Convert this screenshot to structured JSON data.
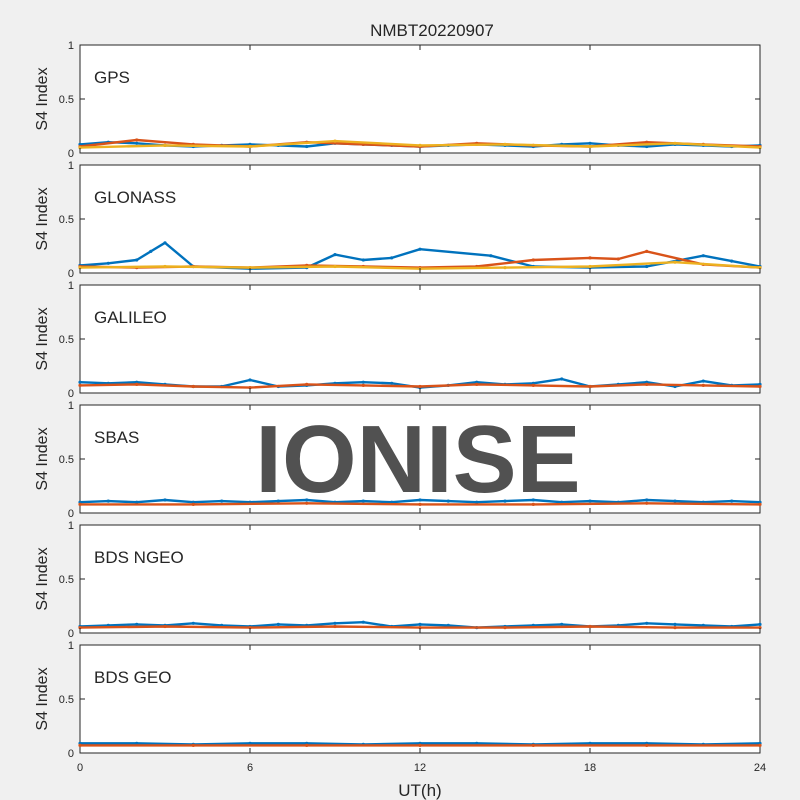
{
  "figure": {
    "title": "NMBT20220907",
    "xlabel": "UT(h)",
    "watermark": "IONISE"
  },
  "palette": [
    "#0072bd",
    "#d95319",
    "#edb120",
    "#7e2f8e",
    "#77ac30",
    "#4dbeee",
    "#a2142f"
  ],
  "chart_data": {
    "type": "scatter",
    "title": "NMBT20220907",
    "xlabel": "UT(h)",
    "xlim": [
      0,
      24
    ],
    "xticks": [
      0,
      6,
      12,
      18,
      24
    ],
    "panels": [
      {
        "label": "GPS",
        "ylabel": "S4 Index",
        "ylim": [
          0,
          1
        ],
        "yticks": [
          0,
          0.5,
          1
        ],
        "series": [
          {
            "x": [
              0,
              1,
              2,
              3,
              4,
              5,
              6,
              7,
              8,
              9,
              10,
              11,
              12,
              13,
              14,
              15,
              16,
              17,
              18,
              19,
              20,
              21,
              22,
              23,
              24
            ],
            "y": [
              0.08,
              0.1,
              0.09,
              0.07,
              0.06,
              0.07,
              0.08,
              0.07,
              0.06,
              0.09,
              0.08,
              0.07,
              0.06,
              0.07,
              0.08,
              0.07,
              0.06,
              0.08,
              0.09,
              0.07,
              0.06,
              0.08,
              0.07,
              0.06,
              0.07
            ]
          },
          {
            "x": [
              0,
              2,
              4,
              6,
              8,
              10,
              12,
              14,
              16,
              18,
              20,
              22,
              24
            ],
            "y": [
              0.06,
              0.12,
              0.08,
              0.06,
              0.1,
              0.08,
              0.06,
              0.09,
              0.07,
              0.06,
              0.1,
              0.08,
              0.06
            ]
          },
          {
            "x": [
              0,
              3,
              6,
              9,
              12,
              15,
              18,
              21,
              24
            ],
            "y": [
              0.05,
              0.07,
              0.06,
              0.11,
              0.07,
              0.08,
              0.06,
              0.09,
              0.05
            ]
          }
        ]
      },
      {
        "label": "GLONASS",
        "ylabel": "S4 Index",
        "ylim": [
          0,
          1
        ],
        "yticks": [
          0,
          0.5,
          1
        ],
        "series": [
          {
            "x": [
              0,
              1,
              2,
              2.5,
              3,
              4,
              6,
              8,
              9,
              10,
              11,
              12,
              14.5,
              16,
              18,
              20,
              22,
              23,
              24
            ],
            "y": [
              0.07,
              0.09,
              0.12,
              0.2,
              0.28,
              0.06,
              0.04,
              0.05,
              0.17,
              0.12,
              0.14,
              0.22,
              0.16,
              0.06,
              0.05,
              0.06,
              0.16,
              0.11,
              0.06
            ]
          },
          {
            "x": [
              0,
              2,
              4,
              6,
              8,
              10,
              12,
              14,
              16,
              18,
              19,
              20,
              22,
              24
            ],
            "y": [
              0.06,
              0.05,
              0.06,
              0.05,
              0.07,
              0.06,
              0.05,
              0.06,
              0.12,
              0.14,
              0.13,
              0.2,
              0.08,
              0.05
            ]
          },
          {
            "x": [
              0,
              3,
              6,
              9,
              12,
              15,
              18,
              21,
              24
            ],
            "y": [
              0.05,
              0.06,
              0.05,
              0.06,
              0.04,
              0.05,
              0.06,
              0.1,
              0.05
            ]
          }
        ]
      },
      {
        "label": "GALILEO",
        "ylabel": "S4 Index",
        "ylim": [
          0,
          1
        ],
        "yticks": [
          0,
          0.5,
          1
        ],
        "series": [
          {
            "x": [
              0,
              1,
              2,
              3,
              4,
              5,
              6,
              7,
              8,
              9,
              10,
              11,
              12,
              13,
              14,
              15,
              16,
              17,
              18,
              19,
              20,
              21,
              22,
              23,
              24
            ],
            "y": [
              0.1,
              0.09,
              0.1,
              0.08,
              0.06,
              0.06,
              0.12,
              0.06,
              0.07,
              0.09,
              0.1,
              0.09,
              0.05,
              0.07,
              0.1,
              0.08,
              0.09,
              0.13,
              0.06,
              0.08,
              0.1,
              0.06,
              0.11,
              0.07,
              0.08
            ]
          },
          {
            "x": [
              0,
              2,
              4,
              6,
              8,
              10,
              12,
              14,
              16,
              18,
              20,
              22,
              24
            ],
            "y": [
              0.07,
              0.08,
              0.06,
              0.05,
              0.08,
              0.07,
              0.06,
              0.08,
              0.07,
              0.06,
              0.08,
              0.07,
              0.06
            ]
          }
        ]
      },
      {
        "label": "SBAS",
        "ylabel": "S4 Index",
        "ylim": [
          0,
          1
        ],
        "yticks": [
          0,
          0.5,
          1
        ],
        "series": [
          {
            "x": [
              0,
              1,
              2,
              3,
              4,
              5,
              6,
              7,
              8,
              9,
              10,
              11,
              12,
              13,
              14,
              15,
              16,
              17,
              18,
              19,
              20,
              21,
              22,
              23,
              24
            ],
            "y": [
              0.1,
              0.11,
              0.1,
              0.12,
              0.1,
              0.11,
              0.1,
              0.11,
              0.12,
              0.1,
              0.11,
              0.1,
              0.12,
              0.11,
              0.1,
              0.11,
              0.12,
              0.1,
              0.11,
              0.1,
              0.12,
              0.11,
              0.1,
              0.11,
              0.1
            ]
          },
          {
            "x": [
              0,
              4,
              8,
              12,
              16,
              20,
              24
            ],
            "y": [
              0.08,
              0.08,
              0.09,
              0.08,
              0.08,
              0.09,
              0.08
            ]
          }
        ]
      },
      {
        "label": "BDS NGEO",
        "ylabel": "S4 Index",
        "ylim": [
          0,
          1
        ],
        "yticks": [
          0,
          0.5,
          1
        ],
        "series": [
          {
            "x": [
              0,
              1,
              2,
              3,
              4,
              5,
              6,
              7,
              8,
              9,
              10,
              11,
              12,
              13,
              14,
              15,
              16,
              17,
              18,
              19,
              20,
              21,
              22,
              23,
              24
            ],
            "y": [
              0.06,
              0.07,
              0.08,
              0.07,
              0.09,
              0.07,
              0.06,
              0.08,
              0.07,
              0.09,
              0.1,
              0.06,
              0.08,
              0.07,
              0.05,
              0.06,
              0.07,
              0.08,
              0.06,
              0.07,
              0.09,
              0.08,
              0.07,
              0.06,
              0.08
            ]
          },
          {
            "x": [
              0,
              3,
              6,
              9,
              12,
              15,
              18,
              21,
              24
            ],
            "y": [
              0.05,
              0.06,
              0.05,
              0.06,
              0.05,
              0.05,
              0.06,
              0.05,
              0.05
            ]
          }
        ]
      },
      {
        "label": "BDS GEO",
        "ylabel": "S4 Index",
        "ylim": [
          0,
          1
        ],
        "yticks": [
          0,
          0.5,
          1
        ],
        "series": [
          {
            "x": [
              0,
              2,
              4,
              6,
              8,
              10,
              12,
              14,
              16,
              18,
              20,
              22,
              24
            ],
            "y": [
              0.09,
              0.09,
              0.08,
              0.09,
              0.09,
              0.08,
              0.09,
              0.09,
              0.08,
              0.09,
              0.09,
              0.08,
              0.09
            ]
          },
          {
            "x": [
              0,
              4,
              8,
              12,
              16,
              20,
              24
            ],
            "y": [
              0.07,
              0.07,
              0.07,
              0.07,
              0.07,
              0.07,
              0.07
            ]
          }
        ]
      }
    ]
  }
}
